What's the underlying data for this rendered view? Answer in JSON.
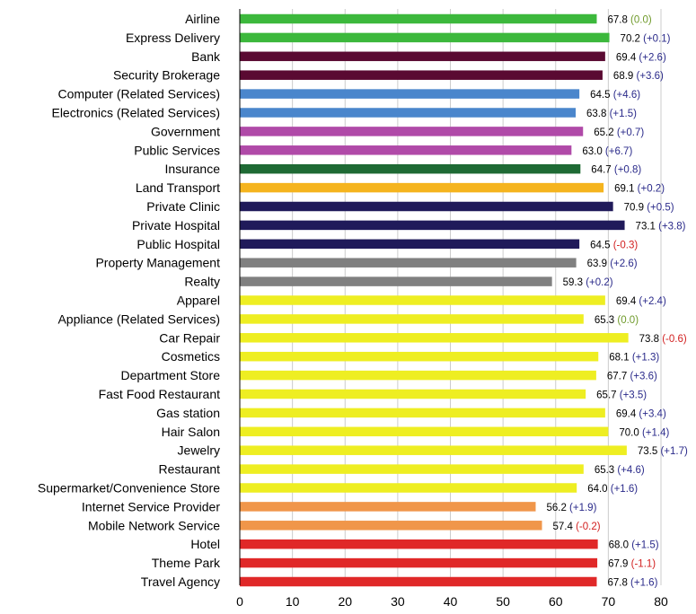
{
  "chart_data": {
    "type": "bar",
    "orientation": "horizontal",
    "title": "",
    "xlabel": "",
    "ylabel": "",
    "xlim": [
      0,
      80
    ],
    "x_ticks": [
      0,
      10,
      20,
      30,
      40,
      50,
      60,
      70,
      80
    ],
    "grid": true,
    "legend": "none",
    "change_colors": {
      "positive": "#2a2a8a",
      "zero": "#6f9a2a",
      "negative": "#d22020"
    },
    "categories": [
      "Airline",
      "Express Delivery",
      "Bank",
      "Security Brokerage",
      "Computer (Related Services)",
      "Electronics (Related Services)",
      "Government",
      "Public Services",
      "Insurance",
      "Land Transport",
      "Private Clinic",
      "Private Hospital",
      "Public Hospital",
      "Property Management",
      "Realty",
      "Apparel",
      "Appliance (Related Services)",
      "Car Repair",
      "Cosmetics",
      "Department Store",
      "Fast Food Restaurant",
      "Gas station",
      "Hair Salon",
      "Jewelry",
      "Restaurant",
      "Supermarket/Convenience Store",
      "Internet Service Provider",
      "Mobile Network Service",
      "Hotel",
      "Theme Park",
      "Travel Agency"
    ],
    "values": [
      67.8,
      70.2,
      69.4,
      68.9,
      64.5,
      63.8,
      65.2,
      63.0,
      64.7,
      69.1,
      70.9,
      73.1,
      64.5,
      63.9,
      59.3,
      69.4,
      65.3,
      73.8,
      68.1,
      67.7,
      65.7,
      69.4,
      70.0,
      73.5,
      65.3,
      64.0,
      56.2,
      57.4,
      68.0,
      67.9,
      67.8
    ],
    "value_labels": [
      "67.8",
      "70.2",
      "69.4",
      "68.9",
      "64.5",
      "63.8",
      "65.2",
      "63.0",
      "64.7",
      "69.1",
      "70.9",
      "73.1",
      "64.5",
      "63.9",
      "59.3",
      "69.4",
      "65.3",
      "73.8",
      "68.1",
      "67.7",
      "65.7",
      "69.4",
      "70.0",
      "73.5",
      "65.3",
      "64.0",
      "56.2",
      "57.4",
      "68.0",
      "67.9",
      "67.8"
    ],
    "changes": [
      0.0,
      0.1,
      2.6,
      3.6,
      4.6,
      1.5,
      0.7,
      6.7,
      0.8,
      0.2,
      0.5,
      3.8,
      -0.3,
      2.6,
      0.2,
      2.4,
      0.0,
      -0.6,
      1.3,
      3.6,
      3.5,
      3.4,
      1.4,
      1.7,
      4.6,
      1.6,
      1.9,
      -0.2,
      1.5,
      -1.1,
      1.6
    ],
    "change_labels": [
      "(0.0)",
      "(+0.1)",
      "(+2.6)",
      "(+3.6)",
      "(+4.6)",
      "(+1.5)",
      "(+0.7)",
      "(+6.7)",
      "(+0.8)",
      "(+0.2)",
      "(+0.5)",
      "(+3.8)",
      "(-0.3)",
      "(+2.6)",
      "(+0.2)",
      "(+2.4)",
      "(0.0)",
      "(-0.6)",
      "(+1.3)",
      "(+3.6)",
      "(+3.5)",
      "(+3.4)",
      "(+1.4)",
      "(+1.7)",
      "(+4.6)",
      "(+1.6)",
      "(+1.9)",
      "(-0.2)",
      "(+1.5)",
      "(-1.1)",
      "(+1.6)"
    ],
    "bar_colors": [
      "#3cb83c",
      "#3cb83c",
      "#5a0a32",
      "#5a0a32",
      "#4a86cc",
      "#4a86cc",
      "#b04aa8",
      "#b04aa8",
      "#1e6a34",
      "#f5b41e",
      "#201a5a",
      "#201a5a",
      "#201a5a",
      "#808080",
      "#808080",
      "#eeee22",
      "#eeee22",
      "#eeee22",
      "#eeee22",
      "#eeee22",
      "#eeee22",
      "#eeee22",
      "#eeee22",
      "#eeee22",
      "#eeee22",
      "#eeee22",
      "#f0964a",
      "#f0964a",
      "#e02828",
      "#e02828",
      "#e02828"
    ]
  }
}
